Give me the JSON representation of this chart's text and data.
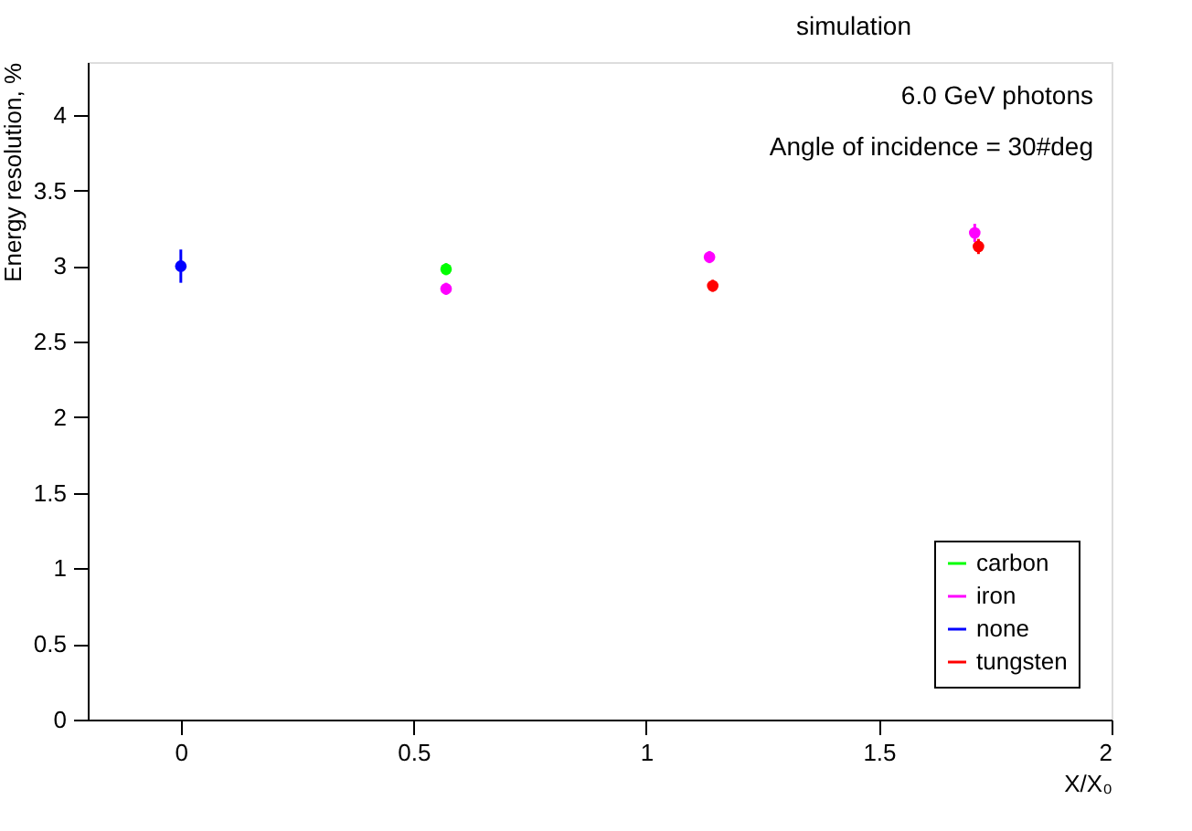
{
  "chart_data": {
    "type": "scatter",
    "title": "simulation",
    "xlabel": "X/X₀",
    "ylabel": "Energy resolution, %",
    "annotations": [
      "6.0 GeV photons",
      "Angle of incidence = 30#deg"
    ],
    "series": [
      {
        "name": "carbon",
        "color": "#00ff00",
        "x": [
          0.57
        ],
        "values": [
          2.98
        ],
        "errors": [
          0.04
        ]
      },
      {
        "name": "iron",
        "color": "#ff00ff",
        "x": [
          0.57,
          1.136,
          1.706
        ],
        "values": [
          2.85,
          3.06,
          3.22
        ],
        "errors": [
          0.04,
          0.04,
          0.06
        ]
      },
      {
        "name": "none",
        "color": "#0000ff",
        "x": [
          0.0
        ],
        "values": [
          3.0
        ],
        "errors": [
          0.11
        ]
      },
      {
        "name": "tungsten",
        "color": "#ff0000",
        "x": [
          1.143,
          1.714
        ],
        "values": [
          2.87,
          3.13
        ],
        "errors": [
          0.04,
          0.05
        ]
      }
    ],
    "xlim": [
      -0.2,
      2.0
    ],
    "xticks": [
      0,
      0.5,
      1,
      1.5,
      2
    ],
    "ylim": [
      0,
      4.35
    ],
    "yticks": [
      0,
      0.5,
      1,
      1.5,
      2,
      2.5,
      3,
      3.5,
      4
    ],
    "grid": false,
    "legend": "bottom right",
    "marker": "circle"
  }
}
